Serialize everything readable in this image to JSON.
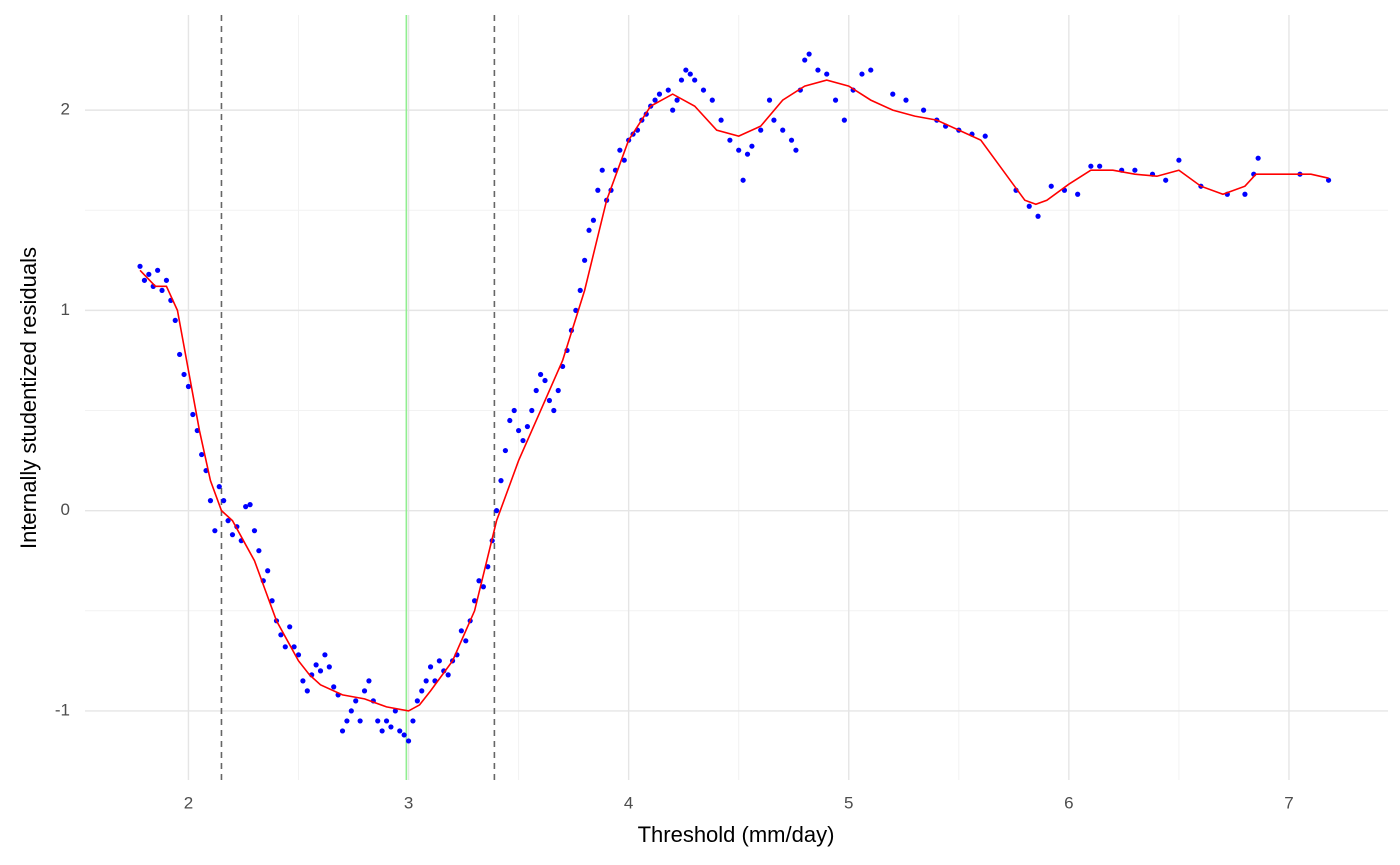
{
  "chart_data": {
    "type": "scatter",
    "x_label": "Threshold (mm/day)",
    "y_label": "Internally studentized residuals",
    "xlim": [
      1.53,
      7.45
    ],
    "ylim": [
      -1.345,
      2.475
    ],
    "xticks": [
      2,
      3,
      4,
      5,
      6,
      7
    ],
    "yticks": [
      -1,
      0,
      1,
      2
    ],
    "minor_xgrid": [
      2.5,
      3.5,
      4.5,
      5.5,
      6.5
    ],
    "minor_ygrid": [
      -0.5,
      0.5,
      1.5
    ],
    "grid": true,
    "vlines": [
      {
        "value": 2.15,
        "color": "#666666",
        "dashed": true
      },
      {
        "value": 2.99,
        "color": "#90ee90",
        "dashed": false
      },
      {
        "value": 3.39,
        "color": "#666666",
        "dashed": true
      }
    ],
    "series": [
      {
        "type": "scatter",
        "color": "#0000ff",
        "x": [
          1.78,
          1.8,
          1.82,
          1.84,
          1.86,
          1.88,
          1.9,
          1.92,
          1.94,
          1.96,
          1.98,
          2.0,
          2.02,
          2.04,
          2.06,
          2.08,
          2.1,
          2.12,
          2.14,
          2.16,
          2.18,
          2.2,
          2.22,
          2.24,
          2.26,
          2.28,
          2.3,
          2.32,
          2.34,
          2.36,
          2.38,
          2.4,
          2.42,
          2.44,
          2.46,
          2.48,
          2.5,
          2.52,
          2.54,
          2.56,
          2.58,
          2.6,
          2.62,
          2.64,
          2.66,
          2.68,
          2.7,
          2.72,
          2.74,
          2.76,
          2.78,
          2.8,
          2.82,
          2.84,
          2.86,
          2.88,
          2.9,
          2.92,
          2.94,
          2.96,
          2.98,
          3.0,
          3.02,
          3.04,
          3.06,
          3.08,
          3.1,
          3.12,
          3.14,
          3.16,
          3.18,
          3.2,
          3.22,
          3.24,
          3.26,
          3.28,
          3.3,
          3.32,
          3.34,
          3.36,
          3.38,
          3.4,
          3.42,
          3.44,
          3.46,
          3.48,
          3.5,
          3.52,
          3.54,
          3.56,
          3.58,
          3.6,
          3.62,
          3.64,
          3.66,
          3.68,
          3.7,
          3.72,
          3.74,
          3.76,
          3.78,
          3.8,
          3.82,
          3.84,
          3.86,
          3.88,
          3.9,
          3.92,
          3.94,
          3.96,
          3.98,
          4.0,
          4.02,
          4.04,
          4.06,
          4.08,
          4.1,
          4.12,
          4.14,
          4.18,
          4.2,
          4.22,
          4.24,
          4.26,
          4.28,
          4.3,
          4.34,
          4.38,
          4.42,
          4.46,
          4.5,
          4.52,
          4.54,
          4.56,
          4.6,
          4.64,
          4.66,
          4.7,
          4.74,
          4.76,
          4.78,
          4.8,
          4.82,
          4.86,
          4.9,
          4.94,
          4.98,
          5.02,
          5.06,
          5.1,
          5.2,
          5.26,
          5.34,
          5.4,
          5.44,
          5.5,
          5.56,
          5.62,
          5.76,
          5.82,
          5.86,
          5.92,
          5.98,
          6.04,
          6.1,
          6.14,
          6.24,
          6.3,
          6.38,
          6.44,
          6.5,
          6.6,
          6.72,
          6.8,
          6.84,
          6.86,
          7.05,
          7.18
        ],
        "values": [
          1.22,
          1.15,
          1.18,
          1.12,
          1.2,
          1.1,
          1.15,
          1.05,
          0.95,
          0.78,
          0.68,
          0.62,
          0.48,
          0.4,
          0.28,
          0.2,
          0.05,
          -0.1,
          0.12,
          0.05,
          -0.05,
          -0.12,
          -0.08,
          -0.15,
          0.02,
          0.03,
          -0.1,
          -0.2,
          -0.35,
          -0.3,
          -0.45,
          -0.55,
          -0.62,
          -0.68,
          -0.58,
          -0.68,
          -0.72,
          -0.85,
          -0.9,
          -0.82,
          -0.77,
          -0.8,
          -0.72,
          -0.78,
          -0.88,
          -0.92,
          -1.1,
          -1.05,
          -1.0,
          -0.95,
          -1.05,
          -0.9,
          -0.85,
          -0.95,
          -1.05,
          -1.1,
          -1.05,
          -1.08,
          -1.0,
          -1.1,
          -1.12,
          -1.15,
          -1.05,
          -0.95,
          -0.9,
          -0.85,
          -0.78,
          -0.85,
          -0.75,
          -0.8,
          -0.82,
          -0.75,
          -0.72,
          -0.6,
          -0.65,
          -0.55,
          -0.45,
          -0.35,
          -0.38,
          -0.28,
          -0.15,
          0.0,
          0.15,
          0.3,
          0.45,
          0.5,
          0.4,
          0.35,
          0.42,
          0.5,
          0.6,
          0.68,
          0.65,
          0.55,
          0.5,
          0.6,
          0.72,
          0.8,
          0.9,
          1.0,
          1.1,
          1.25,
          1.4,
          1.45,
          1.6,
          1.7,
          1.55,
          1.6,
          1.7,
          1.8,
          1.75,
          1.85,
          1.88,
          1.9,
          1.95,
          1.98,
          2.02,
          2.05,
          2.08,
          2.1,
          2.0,
          2.05,
          2.15,
          2.2,
          2.18,
          2.15,
          2.1,
          2.05,
          1.95,
          1.85,
          1.8,
          1.65,
          1.78,
          1.82,
          1.9,
          2.05,
          1.95,
          1.9,
          1.85,
          1.8,
          2.1,
          2.25,
          2.28,
          2.2,
          2.18,
          2.05,
          1.95,
          2.1,
          2.18,
          2.2,
          2.08,
          2.05,
          2.0,
          1.95,
          1.92,
          1.9,
          1.88,
          1.87,
          1.6,
          1.52,
          1.47,
          1.62,
          1.6,
          1.58,
          1.72,
          1.72,
          1.7,
          1.7,
          1.68,
          1.65,
          1.75,
          1.62,
          1.58,
          1.58,
          1.68,
          1.76,
          1.68,
          1.65
        ]
      },
      {
        "type": "line",
        "color": "#ff0000",
        "x": [
          1.78,
          1.85,
          1.9,
          1.95,
          2.0,
          2.05,
          2.1,
          2.15,
          2.2,
          2.25,
          2.3,
          2.35,
          2.4,
          2.45,
          2.5,
          2.55,
          2.6,
          2.7,
          2.8,
          2.9,
          3.0,
          3.05,
          3.1,
          3.2,
          3.3,
          3.4,
          3.5,
          3.6,
          3.7,
          3.8,
          3.9,
          4.0,
          4.1,
          4.2,
          4.3,
          4.4,
          4.5,
          4.6,
          4.7,
          4.8,
          4.9,
          5.0,
          5.1,
          5.2,
          5.3,
          5.4,
          5.5,
          5.6,
          5.7,
          5.8,
          5.85,
          5.9,
          6.0,
          6.1,
          6.2,
          6.3,
          6.4,
          6.5,
          6.6,
          6.7,
          6.8,
          6.85,
          7.0,
          7.1,
          7.18
        ],
        "values": [
          1.2,
          1.12,
          1.12,
          1.0,
          0.7,
          0.4,
          0.15,
          0.0,
          -0.05,
          -0.15,
          -0.25,
          -0.4,
          -0.55,
          -0.65,
          -0.75,
          -0.82,
          -0.87,
          -0.92,
          -0.94,
          -0.98,
          -1.0,
          -0.97,
          -0.9,
          -0.75,
          -0.5,
          -0.05,
          0.25,
          0.5,
          0.75,
          1.1,
          1.55,
          1.85,
          2.02,
          2.08,
          2.02,
          1.9,
          1.87,
          1.92,
          2.05,
          2.12,
          2.15,
          2.12,
          2.05,
          2.0,
          1.97,
          1.95,
          1.9,
          1.85,
          1.7,
          1.55,
          1.53,
          1.55,
          1.63,
          1.7,
          1.7,
          1.68,
          1.67,
          1.7,
          1.62,
          1.58,
          1.62,
          1.68,
          1.68,
          1.68,
          1.66
        ]
      }
    ]
  }
}
